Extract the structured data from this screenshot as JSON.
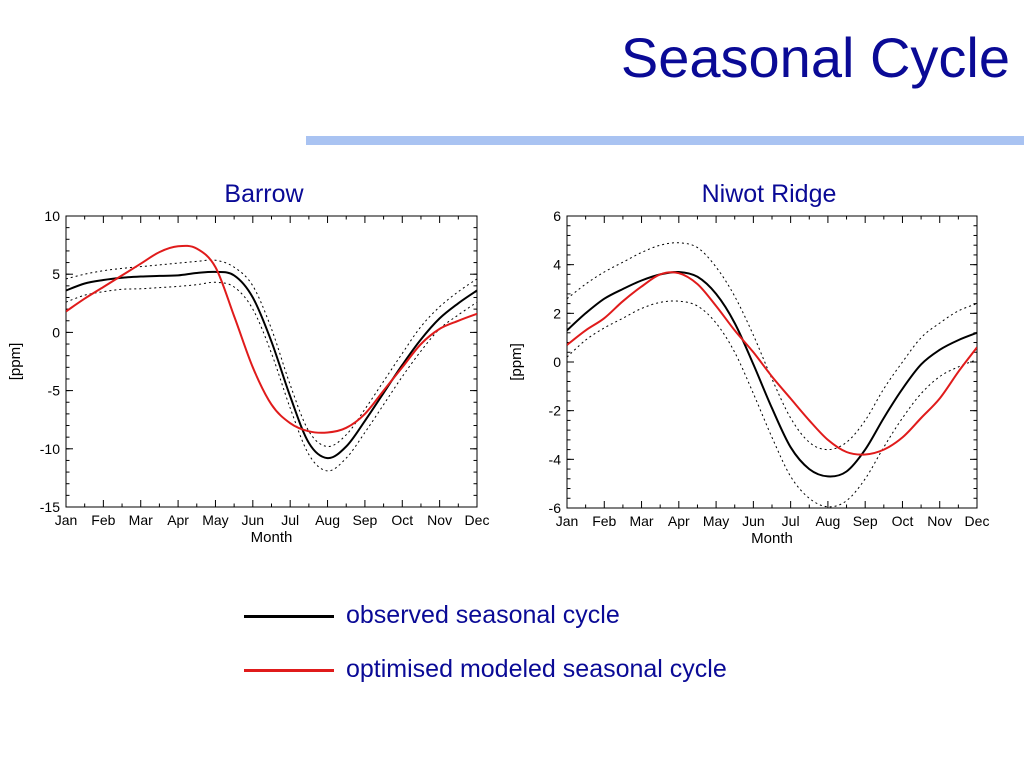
{
  "colors": {
    "title": "#0a0a96",
    "rule": "#a9c3f2",
    "observed": "#000000",
    "modeled": "#e01b1b",
    "uncertainty": "#000000"
  },
  "slide": {
    "title": "Seasonal Cycle"
  },
  "legend": {
    "observed": "observed seasonal cycle",
    "modeled": "optimised modeled seasonal cycle"
  },
  "chart_data": [
    {
      "type": "line",
      "title": "Barrow",
      "xlabel": "Month",
      "ylabel": "[ppm]",
      "grid": false,
      "x_tick_labels": [
        "Jan",
        "Feb",
        "Mar",
        "Apr",
        "May",
        "Jun",
        "Jul",
        "Aug",
        "Sep",
        "Oct",
        "Nov",
        "Dec"
      ],
      "y_ticks": [
        10,
        5,
        0,
        -5,
        -10,
        -15
      ],
      "ylim": [
        -15,
        10
      ],
      "xlim": [
        1,
        12
      ],
      "x": [
        1,
        1.5,
        2,
        2.5,
        3,
        3.5,
        4,
        4.5,
        5,
        5.5,
        6,
        6.5,
        7,
        7.5,
        8,
        8.5,
        9,
        9.5,
        10,
        10.5,
        11,
        11.5,
        12
      ],
      "series": [
        {
          "name": "observed seasonal cycle",
          "role": "observed",
          "values": [
            3.6,
            4.2,
            4.5,
            4.7,
            4.8,
            4.85,
            4.9,
            5.1,
            5.2,
            4.9,
            3.0,
            -0.8,
            -5.5,
            -9.5,
            -10.8,
            -9.8,
            -7.6,
            -5.2,
            -2.8,
            -0.6,
            1.2,
            2.5,
            3.6
          ]
        },
        {
          "name": "observed upper bound",
          "role": "upper",
          "values": [
            4.6,
            5.0,
            5.3,
            5.5,
            5.65,
            5.8,
            5.95,
            6.1,
            6.2,
            5.6,
            4.0,
            0.3,
            -4.5,
            -8.5,
            -9.8,
            -8.8,
            -6.6,
            -4.2,
            -1.8,
            0.5,
            2.2,
            3.5,
            4.6
          ]
        },
        {
          "name": "observed lower bound",
          "role": "lower",
          "values": [
            2.6,
            3.2,
            3.5,
            3.7,
            3.75,
            3.85,
            3.95,
            4.1,
            4.3,
            3.9,
            2.0,
            -1.8,
            -6.5,
            -10.5,
            -11.9,
            -10.8,
            -8.6,
            -6.2,
            -3.8,
            -1.6,
            0.3,
            1.5,
            2.6
          ]
        },
        {
          "name": "optimised modeled seasonal cycle",
          "role": "modeled",
          "values": [
            1.8,
            2.9,
            3.9,
            4.9,
            5.9,
            6.9,
            7.4,
            7.2,
            5.6,
            1.4,
            -3.0,
            -6.2,
            -7.8,
            -8.5,
            -8.6,
            -8.2,
            -7.0,
            -5.0,
            -3.0,
            -1.0,
            0.3,
            1.0,
            1.6
          ]
        }
      ]
    },
    {
      "type": "line",
      "title": "Niwot Ridge",
      "xlabel": "Month",
      "ylabel": "[ppm]",
      "grid": false,
      "x_tick_labels": [
        "Jan",
        "Feb",
        "Mar",
        "Apr",
        "May",
        "Jun",
        "Jul",
        "Aug",
        "Sep",
        "Oct",
        "Nov",
        "Dec"
      ],
      "y_ticks": [
        6,
        4,
        2,
        0,
        -2,
        -4,
        -6
      ],
      "ylim": [
        -6,
        6
      ],
      "xlim": [
        1,
        12
      ],
      "x": [
        1,
        1.5,
        2,
        2.5,
        3,
        3.5,
        4,
        4.5,
        5,
        5.5,
        6,
        6.5,
        7,
        7.5,
        8,
        8.5,
        9,
        9.5,
        10,
        10.5,
        11,
        11.5,
        12
      ],
      "series": [
        {
          "name": "observed seasonal cycle",
          "role": "observed",
          "values": [
            1.3,
            2.0,
            2.6,
            3.0,
            3.35,
            3.6,
            3.7,
            3.5,
            2.8,
            1.6,
            -0.1,
            -1.9,
            -3.5,
            -4.4,
            -4.7,
            -4.5,
            -3.6,
            -2.3,
            -1.1,
            -0.1,
            0.5,
            0.9,
            1.2
          ]
        },
        {
          "name": "observed upper bound",
          "role": "upper",
          "values": [
            2.6,
            3.2,
            3.7,
            4.1,
            4.5,
            4.8,
            4.9,
            4.7,
            3.9,
            2.7,
            1.1,
            -0.7,
            -2.3,
            -3.3,
            -3.6,
            -3.3,
            -2.4,
            -1.1,
            0.0,
            1.0,
            1.6,
            2.1,
            2.4
          ]
        },
        {
          "name": "observed lower bound",
          "role": "lower",
          "values": [
            0.2,
            0.9,
            1.4,
            1.8,
            2.2,
            2.45,
            2.5,
            2.3,
            1.6,
            0.4,
            -1.3,
            -3.1,
            -4.7,
            -5.6,
            -5.95,
            -5.7,
            -4.8,
            -3.5,
            -2.3,
            -1.3,
            -0.6,
            -0.2,
            0.1
          ]
        },
        {
          "name": "optimised modeled seasonal cycle",
          "role": "modeled",
          "values": [
            0.7,
            1.3,
            1.8,
            2.5,
            3.1,
            3.6,
            3.65,
            3.2,
            2.3,
            1.3,
            0.4,
            -0.6,
            -1.5,
            -2.4,
            -3.2,
            -3.7,
            -3.8,
            -3.6,
            -3.1,
            -2.3,
            -1.5,
            -0.4,
            0.6
          ]
        }
      ]
    }
  ]
}
